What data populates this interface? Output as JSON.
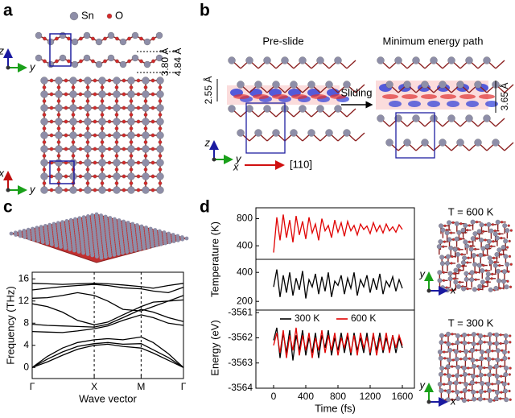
{
  "panel_a": {
    "label": "a",
    "legend": [
      {
        "name": "Sn",
        "color": "#8e8ea8"
      },
      {
        "name": "O",
        "color": "#d42a2a"
      }
    ],
    "axes_side": [
      "z",
      "y"
    ],
    "axes_top": [
      "x",
      "y"
    ],
    "dims": [
      "3.80 Å",
      "4.84 Å"
    ]
  },
  "panel_b": {
    "label": "b",
    "titles": [
      "Pre-slide",
      "Minimum energy path"
    ],
    "dims": [
      "2.55 Å",
      "3.65 Å"
    ],
    "arrow": "Sliding",
    "direction": "[110]",
    "axes": [
      "z",
      "y",
      "x"
    ]
  },
  "panel_c": {
    "label": "c",
    "chart_data": {
      "type": "line",
      "ylabel": "Frequency (THz)",
      "xlabel": "Wave vector",
      "xlim": [
        0,
        1
      ],
      "ylim": [
        -2,
        17.2
      ],
      "yticks": [
        0,
        4,
        8,
        12,
        16
      ],
      "xticks": [
        {
          "value": 0,
          "label": "Γ"
        },
        {
          "value": 0.41,
          "label": "X"
        },
        {
          "value": 0.72,
          "label": "M"
        },
        {
          "value": 1,
          "label": "Γ"
        }
      ],
      "xgrid": "dashed",
      "x": [
        0,
        0.1,
        0.2,
        0.3,
        0.41,
        0.5,
        0.6,
        0.72,
        0.8,
        0.9,
        1
      ],
      "series": [
        {
          "color": "#000000",
          "values": [
            0,
            1,
            2.2,
            3.3,
            4,
            4.2,
            3.8,
            3.5,
            2.6,
            1.3,
            0
          ]
        },
        {
          "color": "#000000",
          "values": [
            0,
            1.5,
            2.8,
            3.8,
            4.3,
            4.5,
            4.2,
            4.3,
            3.2,
            1.8,
            0
          ]
        },
        {
          "color": "#000000",
          "values": [
            0,
            2,
            3.5,
            4.5,
            5,
            5.2,
            5,
            5.5,
            4.5,
            2.5,
            0
          ]
        },
        {
          "color": "#000000",
          "values": [
            6.5,
            6.4,
            6.3,
            6.6,
            7,
            7.5,
            8.5,
            9.5,
            9,
            8,
            7.6
          ]
        },
        {
          "color": "#000000",
          "values": [
            7.8,
            7.6,
            7.5,
            7.4,
            7.3,
            7.8,
            9,
            10.5,
            10,
            9,
            8.3
          ]
        },
        {
          "color": "#000000",
          "values": [
            11.5,
            11,
            10,
            8.5,
            7.7,
            8.2,
            9.5,
            11,
            11.8,
            12,
            12.2
          ]
        },
        {
          "color": "#000000",
          "values": [
            12.5,
            12.6,
            13,
            13.5,
            13,
            12,
            10.5,
            10.2,
            11,
            12,
            13
          ]
        },
        {
          "color": "#000000",
          "values": [
            14,
            14.3,
            14.6,
            14.8,
            15,
            14.8,
            14.4,
            14.2,
            13.8,
            13.5,
            14.5
          ]
        },
        {
          "color": "#000000",
          "values": [
            15.2,
            15.1,
            15,
            15.1,
            15.2,
            15.1,
            14.9,
            14.6,
            14.3,
            14.8,
            15.2
          ]
        }
      ]
    }
  },
  "panel_d": {
    "label": "d",
    "chart_data": [
      {
        "type": "line",
        "ylabel": "Temperature (K)",
        "xlim": [
          -220,
          1750
        ],
        "ylim": [
          200,
          960
        ],
        "yticks": [
          400,
          800
        ],
        "x": [
          0,
          40,
          80,
          120,
          160,
          200,
          240,
          280,
          320,
          360,
          400,
          440,
          480,
          520,
          560,
          600,
          640,
          680,
          720,
          760,
          800,
          840,
          880,
          920,
          960,
          1000,
          1040,
          1080,
          1120,
          1160,
          1200,
          1240,
          1280,
          1320,
          1360,
          1400,
          1440,
          1480,
          1520,
          1560,
          1600
        ],
        "series": [
          {
            "color": "#e00000",
            "values": [
              300,
              820,
              480,
              860,
              520,
              780,
              450,
              840,
              560,
              760,
              500,
              820,
              590,
              720,
              480,
              800,
              620,
              700,
              520,
              780,
              600,
              740,
              540,
              760,
              620,
              700,
              560,
              720,
              640,
              690,
              580,
              740,
              610,
              700,
              590,
              720,
              620,
              680,
              600,
              710,
              640
            ]
          }
        ]
      },
      {
        "type": "line",
        "xlim": [
          -220,
          1750
        ],
        "ylim": [
          140,
          490
        ],
        "yticks": [
          200,
          400
        ],
        "x": [
          0,
          40,
          80,
          120,
          160,
          200,
          240,
          280,
          320,
          360,
          400,
          440,
          480,
          520,
          560,
          600,
          640,
          680,
          720,
          760,
          800,
          840,
          880,
          920,
          960,
          1000,
          1040,
          1080,
          1120,
          1160,
          1200,
          1240,
          1280,
          1320,
          1360,
          1400,
          1440,
          1480,
          1520,
          1560,
          1600
        ],
        "series": [
          {
            "color": "#000000",
            "values": [
              300,
              420,
              230,
              380,
              260,
              400,
              240,
              360,
              280,
              410,
              220,
              350,
              300,
              390,
              250,
              370,
              270,
              400,
              230,
              340,
              310,
              380,
              250,
              360,
              290,
              400,
              240,
              350,
              300,
              380,
              260,
              360,
              280,
              390,
              250,
              340,
              300,
              370,
              270,
              350,
              290
            ]
          }
        ]
      },
      {
        "type": "line",
        "ylabel": "Energy (eV)",
        "xlabel": "Time (fs)",
        "xlim": [
          -220,
          1750
        ],
        "ylim": [
          -3564,
          -3560.9
        ],
        "yticks": [
          -3564,
          -3563,
          -3562,
          -3561
        ],
        "xticks": [
          0,
          400,
          800,
          1200,
          1600
        ],
        "x": [
          0,
          40,
          80,
          120,
          160,
          200,
          240,
          280,
          320,
          360,
          400,
          440,
          480,
          520,
          560,
          600,
          640,
          680,
          720,
          760,
          800,
          840,
          880,
          920,
          960,
          1000,
          1040,
          1080,
          1120,
          1160,
          1200,
          1240,
          1280,
          1320,
          1360,
          1400,
          1440,
          1480,
          1520,
          1560,
          1600
        ],
        "series": [
          {
            "name": "300 K",
            "color": "#000000",
            "values": [
              -3562.1,
              -3561.6,
              -3562.8,
              -3561.8,
              -3562.6,
              -3561.7,
              -3562.9,
              -3561.9,
              -3562.5,
              -3561.7,
              -3562.7,
              -3562.0,
              -3562.6,
              -3561.8,
              -3562.8,
              -3561.9,
              -3562.4,
              -3561.7,
              -3562.7,
              -3562.0,
              -3562.5,
              -3561.8,
              -3562.6,
              -3561.9,
              -3562.7,
              -3561.8,
              -3562.5,
              -3562.0,
              -3562.6,
              -3561.8,
              -3562.7,
              -3561.9,
              -3562.5,
              -3561.8,
              -3562.6,
              -3562.0,
              -3562.5,
              -3561.9,
              -3562.6,
              -3562.0,
              -3562.4
            ]
          },
          {
            "name": "600 K",
            "color": "#e00000",
            "values": [
              -3562.3,
              -3561.8,
              -3562.6,
              -3561.7,
              -3562.8,
              -3561.9,
              -3562.5,
              -3561.6,
              -3562.7,
              -3561.9,
              -3562.5,
              -3561.8,
              -3562.8,
              -3562.0,
              -3562.5,
              -3561.7,
              -3562.6,
              -3561.9,
              -3562.5,
              -3561.8,
              -3562.7,
              -3562.0,
              -3562.4,
              -3561.8,
              -3562.6,
              -3561.9,
              -3562.7,
              -3561.8,
              -3562.4,
              -3562.0,
              -3562.6,
              -3561.8,
              -3562.7,
              -3562.0,
              -3562.5,
              -3561.8,
              -3562.6,
              -3561.9,
              -3562.4,
              -3561.9,
              -3562.3
            ]
          }
        ],
        "legend": "top"
      }
    ],
    "snapshots": [
      {
        "title": "T = 600 K",
        "axes": [
          "y",
          "x"
        ]
      },
      {
        "title": "T = 300 K",
        "axes": [
          "y",
          "x"
        ]
      }
    ]
  }
}
